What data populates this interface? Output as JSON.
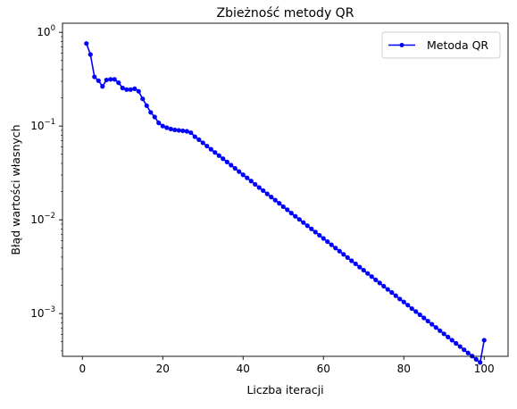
{
  "chart_data": {
    "type": "line",
    "title": "Zbieżność metody QR",
    "xlabel": "Liczba iteracji",
    "ylabel": "Błąd wartości własnych",
    "yscale": "log",
    "xlim": [
      -4.95,
      105.95
    ],
    "ylim": [
      0.00035,
      1.25
    ],
    "grid": false,
    "legend": "top-right",
    "x_ticks": [
      {
        "value": 0,
        "label": "0"
      },
      {
        "value": 20,
        "label": "20"
      },
      {
        "value": 40,
        "label": "40"
      },
      {
        "value": 60,
        "label": "60"
      },
      {
        "value": 80,
        "label": "80"
      },
      {
        "value": 100,
        "label": "100"
      }
    ],
    "y_ticks": [
      {
        "value": 0.001,
        "base": "10",
        "exp": "−3"
      },
      {
        "value": 0.01,
        "base": "10",
        "exp": "−2"
      },
      {
        "value": 0.1,
        "base": "10",
        "exp": "−1"
      },
      {
        "value": 1,
        "base": "10",
        "exp": "0"
      }
    ],
    "series": [
      {
        "name": "Metoda QR",
        "color": "#0000ff",
        "marker": "circle",
        "x": [
          1,
          2,
          3,
          4,
          5,
          6,
          7,
          8,
          9,
          10,
          11,
          12,
          13,
          14,
          15,
          16,
          17,
          18,
          19,
          20,
          21,
          22,
          23,
          24,
          25,
          26,
          27,
          28,
          29,
          30,
          31,
          32,
          33,
          34,
          35,
          36,
          37,
          38,
          39,
          40,
          41,
          42,
          43,
          44,
          45,
          46,
          47,
          48,
          49,
          50,
          51,
          52,
          53,
          54,
          55,
          56,
          57,
          58,
          59,
          60,
          61,
          62,
          63,
          64,
          65,
          66,
          67,
          68,
          69,
          70,
          71,
          72,
          73,
          74,
          75,
          76,
          77,
          78,
          79,
          80,
          81,
          82,
          83,
          84,
          85,
          86,
          87,
          88,
          89,
          90,
          91,
          92,
          93,
          94,
          95,
          96,
          97,
          98,
          99,
          100
        ],
        "values": [
          0.76,
          0.58,
          0.335,
          0.305,
          0.265,
          0.31,
          0.315,
          0.315,
          0.29,
          0.255,
          0.245,
          0.245,
          0.25,
          0.235,
          0.195,
          0.165,
          0.14,
          0.125,
          0.108,
          0.1,
          0.096,
          0.093,
          0.091,
          0.09,
          0.089,
          0.088,
          0.085,
          0.077,
          0.0716,
          0.0662,
          0.0612,
          0.0566,
          0.0523,
          0.0484,
          0.0448,
          0.0414,
          0.0383,
          0.0354,
          0.0327,
          0.0302,
          0.028,
          0.0259,
          0.0239,
          0.0221,
          0.0205,
          0.0189,
          0.0175,
          0.0162,
          0.015,
          0.0138,
          0.0128,
          0.0118,
          0.0109,
          0.0101,
          0.00935,
          0.00865,
          0.008,
          0.0074,
          0.00684,
          0.00633,
          0.00585,
          0.00541,
          0.005,
          0.00463,
          0.00428,
          0.00396,
          0.00366,
          0.00339,
          0.00313,
          0.0029,
          0.00268,
          0.00248,
          0.00229,
          0.00212,
          0.00196,
          0.00181,
          0.00168,
          0.00155,
          0.00143,
          0.00133,
          0.00123,
          0.00113,
          0.00105,
          0.000972,
          0.000899,
          0.000831,
          0.000769,
          0.000711,
          0.000657,
          0.000608,
          0.000562,
          0.00052,
          0.000481,
          0.000445,
          0.000411,
          0.00038,
          0.000352,
          0.000325,
          0.000301,
          0.00052
        ]
      }
    ]
  }
}
